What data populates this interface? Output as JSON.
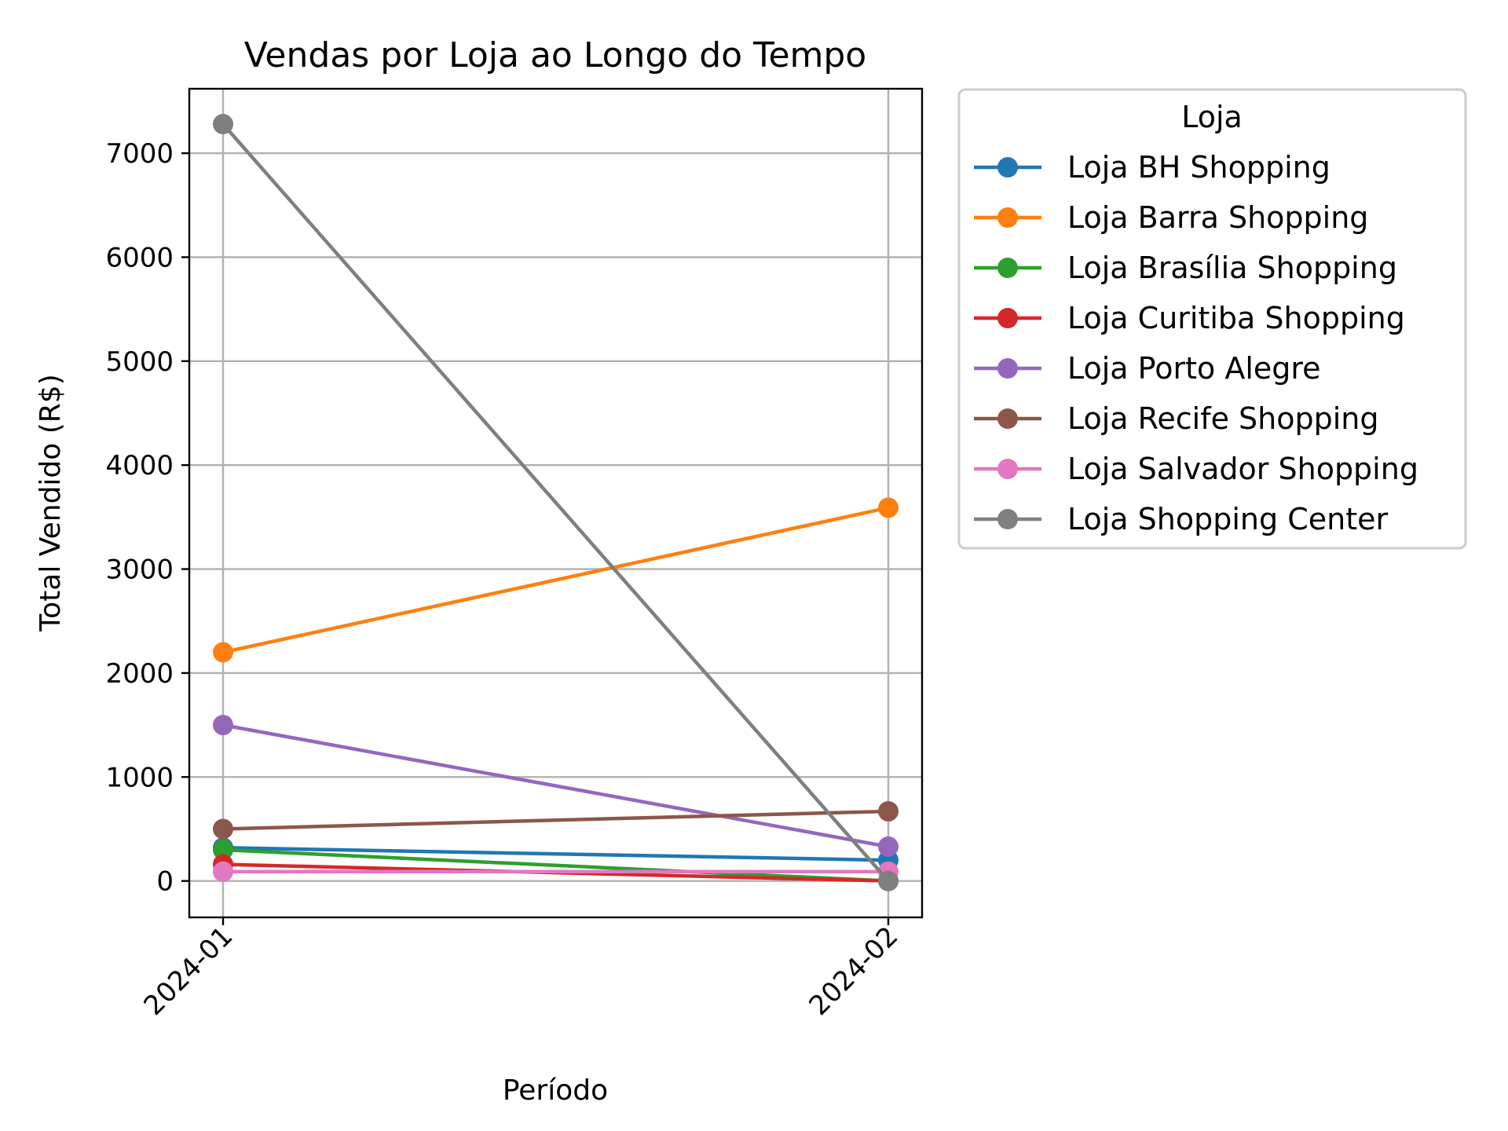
{
  "chart_data": {
    "type": "line",
    "title": "Vendas por Loja ao Longo do Tempo",
    "xlabel": "Período",
    "ylabel": "Total Vendido (R$)",
    "categories": [
      "2024-01",
      "2024-02"
    ],
    "ylim": [
      -350,
      7620
    ],
    "yticks": [
      0,
      1000,
      2000,
      3000,
      4000,
      5000,
      6000,
      7000
    ],
    "grid": true,
    "legend": {
      "title": "Loja",
      "placement": "outside-top-right"
    },
    "series": [
      {
        "name": "Loja BH Shopping",
        "color": "#1f77b4",
        "values": [
          320,
          200
        ]
      },
      {
        "name": "Loja Barra Shopping",
        "color": "#ff7f0e",
        "values": [
          2200,
          3590
        ]
      },
      {
        "name": "Loja Brasília Shopping",
        "color": "#2ca02c",
        "values": [
          300,
          0
        ]
      },
      {
        "name": "Loja Curitiba Shopping",
        "color": "#d62728",
        "values": [
          160,
          0
        ]
      },
      {
        "name": "Loja Porto Alegre",
        "color": "#9467bd",
        "values": [
          1500,
          330
        ]
      },
      {
        "name": "Loja Recife Shopping",
        "color": "#8c564b",
        "values": [
          500,
          670
        ]
      },
      {
        "name": "Loja Salvador Shopping",
        "color": "#e377c2",
        "values": [
          90,
          90
        ]
      },
      {
        "name": "Loja Shopping Center",
        "color": "#7f7f7f",
        "values": [
          7280,
          0
        ]
      }
    ]
  }
}
